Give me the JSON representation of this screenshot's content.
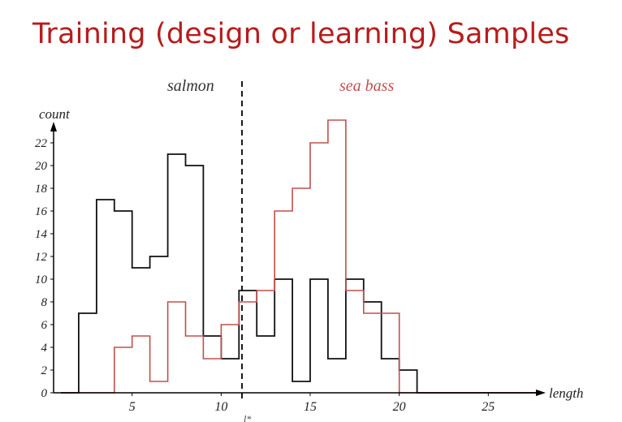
{
  "slide": {
    "title": "Training (design or learning) Samples"
  },
  "chart_data": {
    "type": "bar",
    "histogram": true,
    "x_edges": [
      1,
      2,
      3,
      4,
      5,
      6,
      7,
      8,
      9,
      10,
      11,
      12,
      13,
      14,
      15,
      16,
      17,
      18,
      19,
      20,
      21,
      22,
      23,
      24,
      25,
      26,
      27,
      28
    ],
    "series": [
      {
        "name": "salmon",
        "color": "#111111",
        "values": [
          0,
          7,
          17,
          16,
          11,
          12,
          21,
          20,
          5,
          3,
          9,
          5,
          10,
          1,
          10,
          3,
          10,
          8,
          3,
          2,
          0,
          0,
          0,
          0,
          0,
          0,
          0
        ]
      },
      {
        "name": "sea bass",
        "color": "#c0504d",
        "values": [
          0,
          0,
          0,
          4,
          5,
          1,
          8,
          5,
          3,
          6,
          8,
          9,
          16,
          18,
          22,
          24,
          9,
          7,
          7,
          0,
          0,
          0,
          0,
          0,
          0,
          0,
          0
        ]
      }
    ],
    "xlabel": "length",
    "ylabel": "count",
    "x_ticks": [
      "5",
      "10",
      "15",
      "20",
      "25"
    ],
    "y_ticks": [
      "0",
      "2",
      "4",
      "6",
      "8",
      "10",
      "12",
      "14",
      "16",
      "18",
      "20",
      "22"
    ],
    "threshold": {
      "x": 11,
      "label": "l*"
    },
    "annotations": [
      {
        "text": "salmon",
        "color": "#333333"
      },
      {
        "text": "sea bass",
        "color": "#c0504d"
      }
    ],
    "xlim": [
      1,
      28
    ],
    "ylim": [
      0,
      24
    ],
    "grid": false,
    "legend": "none"
  }
}
